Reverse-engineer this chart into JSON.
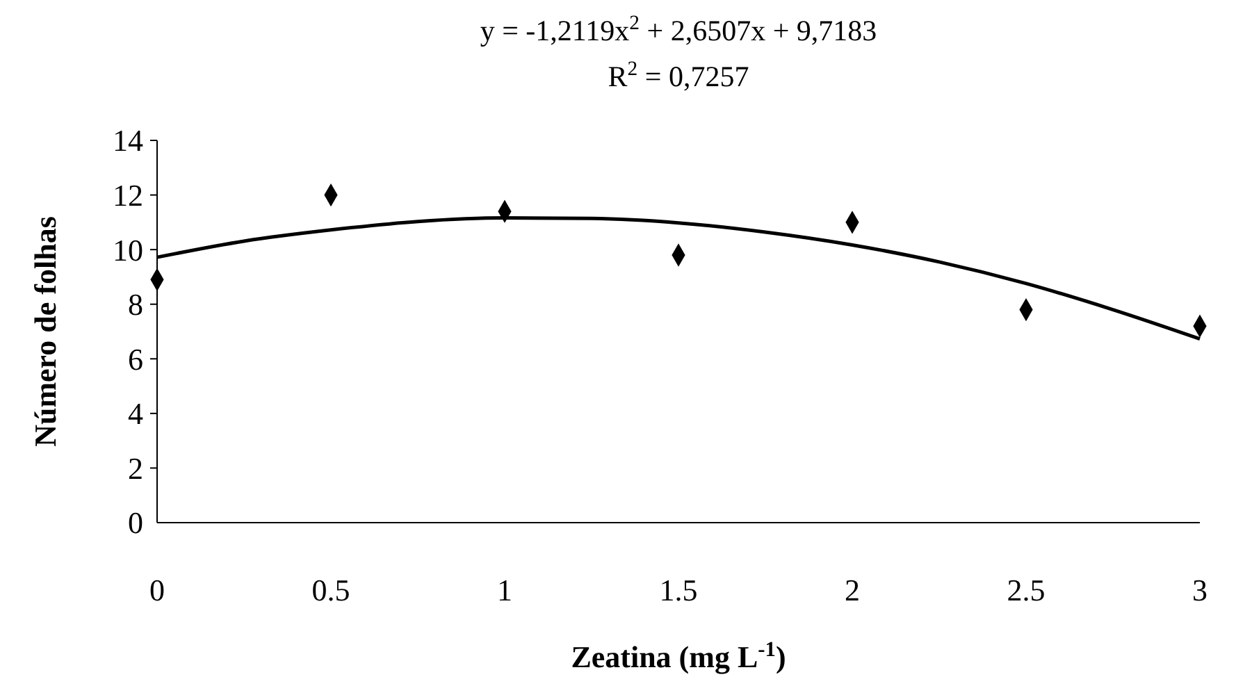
{
  "chart_data": {
    "type": "scatter",
    "title": "y = -1,2119x$^{2}$ + 2,6507x + 9,7183",
    "subtitle": "R$^{2}$ = 0,7257",
    "xlabel": "Zeatina (mg L$^{-1}$)",
    "ylabel": "Número de folhas",
    "xlim": [
      0,
      3
    ],
    "xticks": [
      0,
      0.5,
      1,
      1.5,
      2,
      2.5,
      3
    ],
    "ylim": [
      0,
      14
    ],
    "yticks": [
      0,
      2,
      4,
      6,
      8,
      10,
      12,
      14
    ],
    "series": [
      {
        "type": "scatter",
        "color": "#000000",
        "marker": "diamond",
        "x": [
          0,
          0.5,
          1,
          1.5,
          2,
          2.5,
          3
        ],
        "values": [
          8.9,
          12.0,
          11.4,
          9.8,
          11.0,
          7.8,
          7.2
        ]
      },
      {
        "type": "line",
        "color": "#000000",
        "marker": "none",
        "line_style": "solid",
        "x": [
          0,
          0.25,
          0.5,
          0.75,
          1,
          1.25,
          1.5,
          1.75,
          2,
          2.25,
          2.5,
          2.75,
          3
        ],
        "values": [
          9.72,
          10.31,
          10.72,
          11.03,
          11.16,
          11.14,
          10.98,
          10.64,
          10.17,
          9.55,
          8.76,
          7.8,
          6.73
        ]
      }
    ]
  }
}
